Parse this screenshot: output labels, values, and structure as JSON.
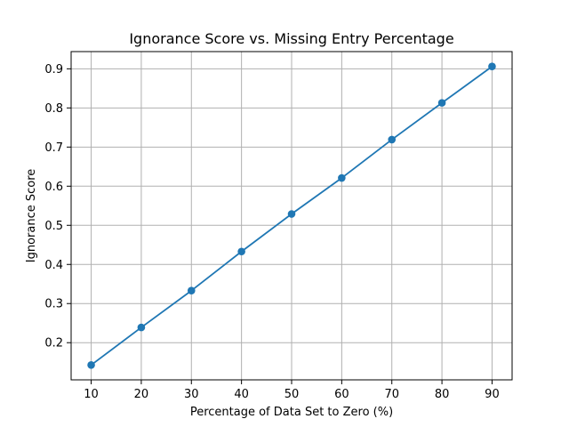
{
  "chart_data": {
    "type": "line",
    "title": "Ignorance Score vs. Missing Entry Percentage",
    "xlabel": "Percentage of Data Set to Zero (%)",
    "ylabel": "Ignorance Score",
    "x": [
      10,
      20,
      30,
      40,
      50,
      60,
      70,
      80,
      90
    ],
    "series": [
      {
        "values": [
          0.143,
          0.239,
          0.333,
          0.433,
          0.529,
          0.621,
          0.719,
          0.813,
          0.906
        ],
        "color": "#1f77b4",
        "marker": "circle"
      }
    ],
    "xticks": [
      "10",
      "20",
      "30",
      "40",
      "50",
      "60",
      "70",
      "80",
      "90"
    ],
    "yticks": [
      "0.2",
      "0.3",
      "0.4",
      "0.5",
      "0.6",
      "0.7",
      "0.8",
      "0.9"
    ],
    "xlim": [
      6,
      94
    ],
    "ylim": [
      0.105,
      0.944
    ],
    "grid": true,
    "grid_color": "#b0b0b0"
  }
}
